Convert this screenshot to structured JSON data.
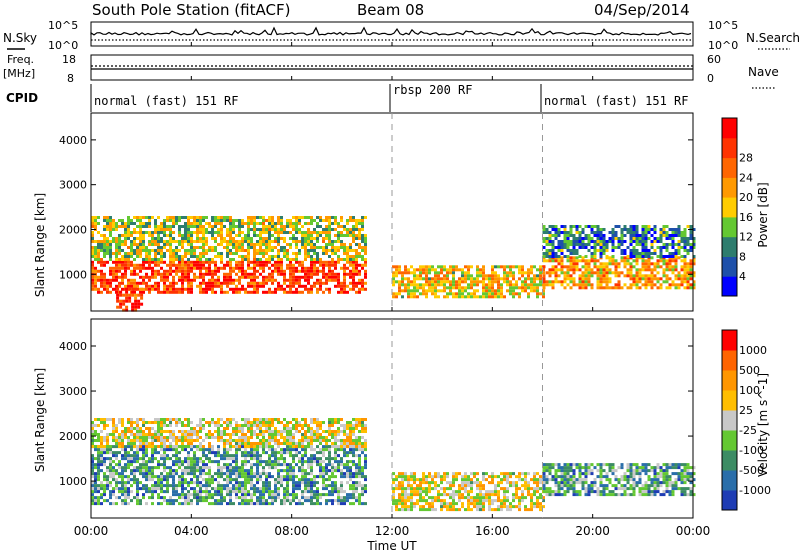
{
  "chart_data": {
    "type": "heatmap",
    "title": {
      "station": "South Pole Station (fitACF)",
      "beam": "Beam 08",
      "date": "04/Sep/2014"
    },
    "time_axis": {
      "label": "Time UT",
      "range_hours": [
        0,
        24
      ],
      "ticks": [
        "00:00",
        "04:00",
        "08:00",
        "12:00",
        "16:00",
        "20:00",
        "00:00"
      ]
    },
    "top_panels": {
      "nsky": {
        "label": "N.Sky",
        "left_ticks": [
          "10^5",
          "10^0"
        ],
        "right_label": "N.Search",
        "right_ticks": [
          "10^5",
          "10^0"
        ]
      },
      "freq": {
        "label_lines": [
          "Freq.",
          "[MHz]"
        ],
        "left_ticks": [
          18,
          8
        ],
        "right_label": "Nave",
        "right_ticks": [
          60,
          0
        ]
      },
      "cpid": {
        "label": "CPID",
        "segments": [
          {
            "label": "normal (fast) 151 RF",
            "start_h": 0,
            "end_h": 12
          },
          {
            "label": "rbsp 200 RF",
            "start_h": 12,
            "end_h": 18
          },
          {
            "label": "normal (fast) 151 RF",
            "start_h": 18,
            "end_h": 24
          }
        ]
      }
    },
    "range_axis": {
      "label": "Slant Range [km]",
      "range_km": [
        180,
        4600
      ],
      "ticks": [
        1000,
        2000,
        3000,
        4000
      ]
    },
    "panels": [
      {
        "name": "power",
        "colorbar_label": "Power [dB]",
        "colorbar_ticks": [
          4,
          8,
          12,
          16,
          20,
          24,
          28
        ],
        "colorbar_colors": [
          "#0000ff",
          "#1e50aa",
          "#2e7d6e",
          "#64c832",
          "#ffcc00",
          "#ff9900",
          "#ff6600",
          "#ff3300",
          "#ff0000"
        ],
        "regions": [
          {
            "t0": 0.0,
            "t1": 11.0,
            "r0": 600,
            "r1": 1300,
            "level": 0.82
          },
          {
            "t0": 0.0,
            "t1": 11.0,
            "r0": 1300,
            "r1": 2300,
            "level": 0.45
          },
          {
            "t0": 1.0,
            "t1": 2.0,
            "r0": 180,
            "r1": 700,
            "level": 0.85
          },
          {
            "t0": 12.0,
            "t1": 18.0,
            "r0": 500,
            "r1": 1200,
            "level": 0.55
          },
          {
            "t0": 18.0,
            "t1": 24.0,
            "r0": 700,
            "r1": 1400,
            "level": 0.62
          },
          {
            "t0": 18.0,
            "t1": 24.0,
            "r0": 1400,
            "r1": 2100,
            "level": 0.25
          }
        ]
      },
      {
        "name": "velocity",
        "colorbar_label": "Velocity [m s^-1]",
        "colorbar_ticks": [
          1000,
          500,
          100,
          25,
          -25,
          -100,
          -500,
          -1000
        ],
        "colorbar_colors": [
          "#1e3cb4",
          "#2a6eaa",
          "#3c8c64",
          "#64c832",
          "#c8c8c8",
          "#ffbe00",
          "#ff9600",
          "#ff6400",
          "#ff0000"
        ],
        "regions": [
          {
            "t0": 0.0,
            "t1": 11.0,
            "r0": 500,
            "r1": 1800,
            "level": 0.3
          },
          {
            "t0": 0.0,
            "t1": 11.0,
            "r0": 1800,
            "r1": 2400,
            "level": 0.55
          },
          {
            "t0": 12.0,
            "t1": 18.0,
            "r0": 400,
            "r1": 1200,
            "level": 0.55
          },
          {
            "t0": 18.0,
            "t1": 24.0,
            "r0": 700,
            "r1": 1400,
            "level": 0.3
          }
        ]
      }
    ],
    "mode_change_times_h": [
      12,
      18
    ]
  }
}
